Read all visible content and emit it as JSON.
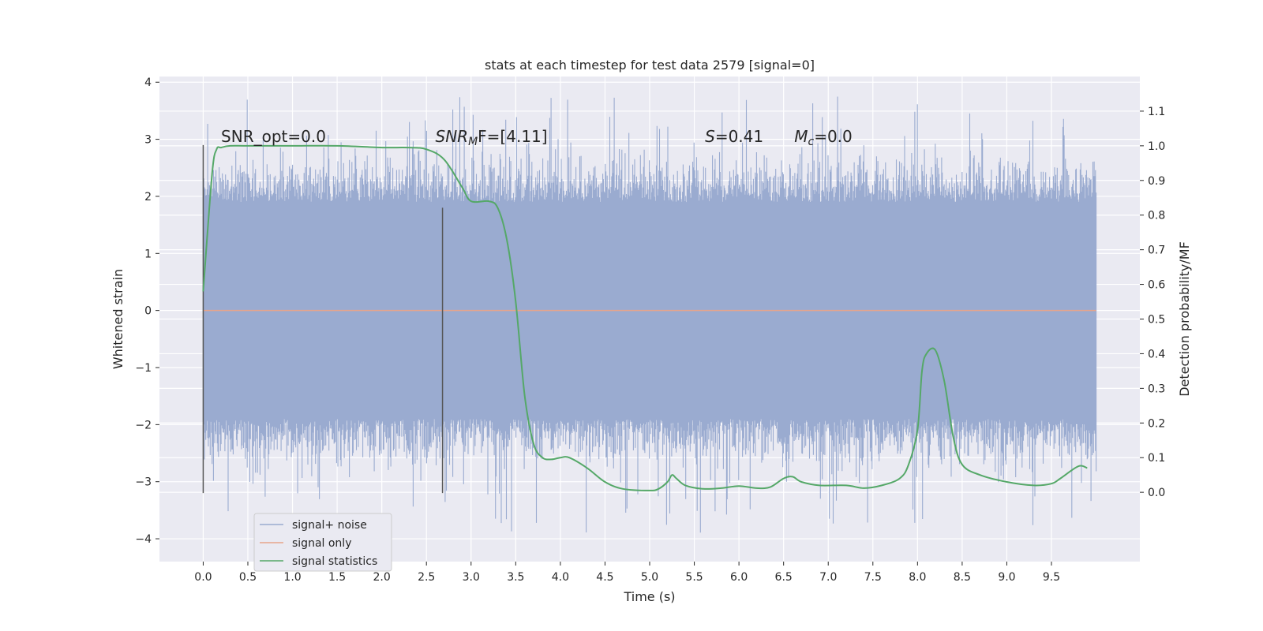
{
  "chart_data": {
    "type": "line",
    "title": "stats at each timestep for test data 2579 [signal=0]",
    "xlabel": "Time (s)",
    "ylabel": "Whitened strain",
    "y2label": "Detection probability/MF",
    "xlim": [
      -0.49,
      10.49
    ],
    "ylim": [
      -4.4,
      4.1
    ],
    "y2lim": [
      -0.2,
      1.2
    ],
    "xticks": [
      0.0,
      0.5,
      1.0,
      1.5,
      2.0,
      2.5,
      3.0,
      3.5,
      4.0,
      4.5,
      5.0,
      5.5,
      6.0,
      6.5,
      7.0,
      7.5,
      8.0,
      8.5,
      9.0,
      9.5
    ],
    "xtick_labels": [
      "0.0",
      "0.5",
      "1.0",
      "1.5",
      "2.0",
      "2.5",
      "3.0",
      "3.5",
      "4.0",
      "4.5",
      "5.0",
      "5.5",
      "6.0",
      "6.5",
      "7.0",
      "7.5",
      "8.0",
      "8.5",
      "9.0",
      "9.5"
    ],
    "yticks": [
      -4,
      -3,
      -2,
      -1,
      0,
      1,
      2,
      3,
      4
    ],
    "ytick_labels": [
      "−4",
      "−3",
      "−2",
      "−1",
      "0",
      "1",
      "2",
      "3",
      "4"
    ],
    "y2ticks": [
      0.0,
      0.1,
      0.2,
      0.3,
      0.4,
      0.5,
      0.6,
      0.7,
      0.8,
      0.9,
      1.0,
      1.1
    ],
    "y2tick_labels": [
      "0.0",
      "0.1",
      "0.2",
      "0.3",
      "0.4",
      "0.5",
      "0.6",
      "0.7",
      "0.8",
      "0.9",
      "1.0",
      "1.1"
    ],
    "grid": true,
    "legend_position": "lower-left",
    "annotations": {
      "snr_opt": "SNR_opt=0.0",
      "snr_mf_base": "SNR",
      "snr_mf_sub": "M",
      "snr_mf_rest": "F=[4.11]",
      "s_sym": "S",
      "s_val": "=0.41",
      "mc_sym": "M",
      "mc_sub": "c",
      "mc_val": "=0.0"
    },
    "vertical_markers": [
      {
        "x": 0.0,
        "ymin": -3.2,
        "ymax": 2.9
      },
      {
        "x": 2.68,
        "ymin": -3.2,
        "ymax": 1.8
      }
    ],
    "series": [
      {
        "name": "signal+ noise",
        "color": "#9aabd0",
        "kind": "noise",
        "t_start": 0.0,
        "t_end": 10.0,
        "core_amplitude": 1.75,
        "extreme_range": [
          -3.9,
          3.75
        ]
      },
      {
        "name": "signal only",
        "color": "#e8a58a",
        "kind": "line",
        "x": [
          0.0,
          10.0
        ],
        "y": [
          0.0,
          0.0
        ]
      },
      {
        "name": "signal statistics",
        "color": "#55a868",
        "kind": "line",
        "axis": "right",
        "x": [
          0.0,
          0.1,
          0.15,
          0.2,
          0.3,
          0.5,
          1.0,
          1.5,
          2.0,
          2.3,
          2.5,
          2.7,
          2.9,
          3.0,
          3.2,
          3.3,
          3.4,
          3.5,
          3.6,
          3.7,
          3.8,
          3.9,
          4.0,
          4.1,
          4.3,
          4.5,
          4.7,
          5.0,
          5.1,
          5.2,
          5.25,
          5.3,
          5.4,
          5.6,
          5.8,
          6.0,
          6.2,
          6.35,
          6.5,
          6.6,
          6.7,
          6.9,
          7.2,
          7.4,
          7.6,
          7.8,
          7.9,
          8.0,
          8.05,
          8.1,
          8.2,
          8.3,
          8.4,
          8.5,
          8.7,
          9.0,
          9.3,
          9.5,
          9.6,
          9.8,
          9.9
        ],
        "y": [
          0.58,
          0.92,
          0.99,
          0.995,
          1.0,
          1.0,
          1.0,
          1.0,
          0.995,
          0.995,
          0.99,
          0.96,
          0.88,
          0.84,
          0.84,
          0.82,
          0.73,
          0.55,
          0.28,
          0.14,
          0.1,
          0.095,
          0.1,
          0.1,
          0.07,
          0.03,
          0.01,
          0.005,
          0.01,
          0.03,
          0.05,
          0.04,
          0.02,
          0.01,
          0.012,
          0.018,
          0.012,
          0.015,
          0.04,
          0.045,
          0.03,
          0.02,
          0.02,
          0.012,
          0.02,
          0.04,
          0.08,
          0.18,
          0.35,
          0.4,
          0.41,
          0.32,
          0.16,
          0.08,
          0.05,
          0.03,
          0.02,
          0.025,
          0.04,
          0.075,
          0.07
        ]
      }
    ]
  }
}
